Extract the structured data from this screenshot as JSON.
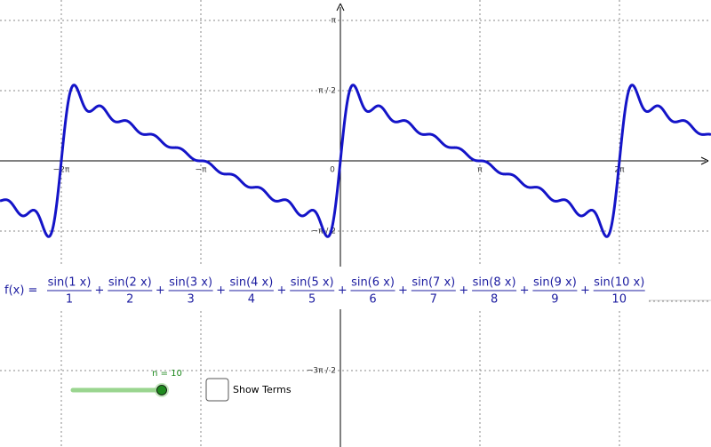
{
  "axes": {
    "x_labels": [
      "−2π",
      "−π",
      "0",
      "π",
      "2π"
    ],
    "y_labels": [
      "π",
      "π / 2",
      "−π / 2",
      "−3π / 2"
    ]
  },
  "formula": {
    "lhs": "f(x) =",
    "operator": "+",
    "terms": [
      {
        "num": "sin(1 x)",
        "den": "1"
      },
      {
        "num": "sin(2 x)",
        "den": "2"
      },
      {
        "num": "sin(3 x)",
        "den": "3"
      },
      {
        "num": "sin(4 x)",
        "den": "4"
      },
      {
        "num": "sin(5 x)",
        "den": "5"
      },
      {
        "num": "sin(6 x)",
        "den": "6"
      },
      {
        "num": "sin(7 x)",
        "den": "7"
      },
      {
        "num": "sin(8 x)",
        "den": "8"
      },
      {
        "num": "sin(9 x)",
        "den": "9"
      },
      {
        "num": "sin(10 x)",
        "den": "10"
      }
    ]
  },
  "slider": {
    "label": "n = 10",
    "n": 10
  },
  "checkbox": {
    "label": "Show Terms"
  }
}
